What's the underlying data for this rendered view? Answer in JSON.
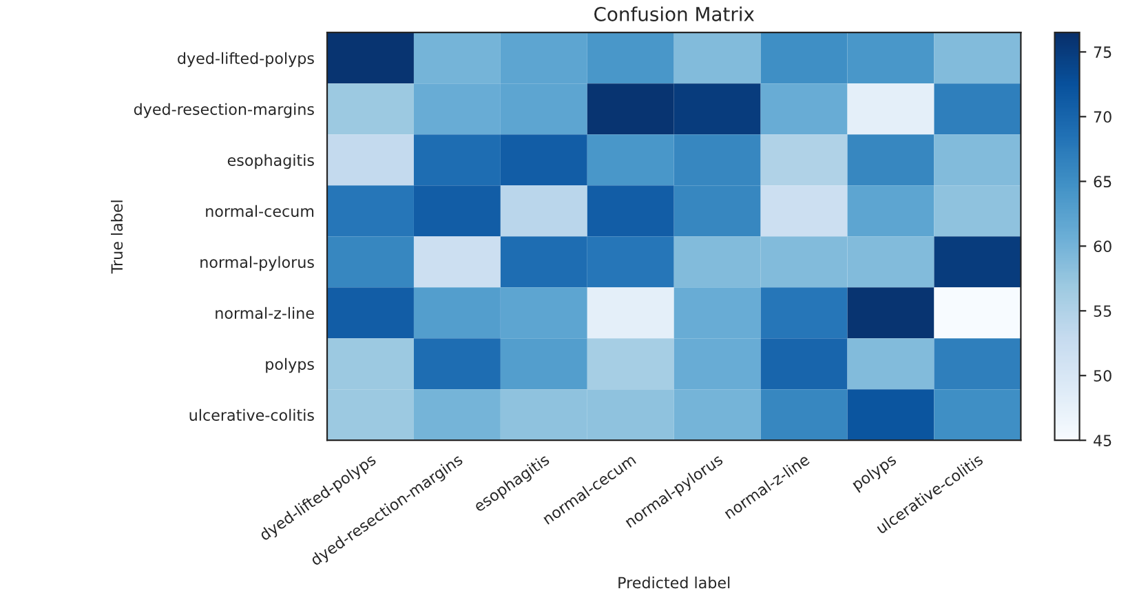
{
  "chart_data": {
    "type": "heatmap",
    "title": "Confusion Matrix",
    "xlabel": "Predicted label",
    "ylabel": "True label",
    "categories": [
      "dyed-lifted-polyps",
      "dyed-resection-margins",
      "esophagitis",
      "normal-cecum",
      "normal-pylorus",
      "normal-z-line",
      "polyps",
      "ulcerative-colitis"
    ],
    "y_categories": [
      "dyed-lifted-polyps",
      "dyed-resection-margins",
      "esophagitis",
      "normal-cecum",
      "normal-pylorus",
      "normal-z-line",
      "polyps",
      "ulcerative-colitis"
    ],
    "cells": [
      [
        76,
        60,
        62,
        64,
        59,
        65,
        64,
        59
      ],
      [
        57,
        61,
        62,
        76,
        75,
        61,
        48,
        67
      ],
      [
        53,
        69,
        71,
        64,
        66,
        55,
        66,
        59
      ],
      [
        68,
        71,
        54,
        71,
        66,
        52,
        62,
        58
      ],
      [
        66,
        52,
        69,
        68,
        59,
        59,
        59,
        75
      ],
      [
        71,
        63,
        62,
        48,
        61,
        68,
        76,
        45
      ],
      [
        57,
        69,
        63,
        56,
        61,
        70,
        59,
        67
      ],
      [
        57,
        60,
        58,
        58,
        60,
        66,
        72,
        65
      ]
    ],
    "clim": [
      45,
      76.5
    ],
    "cticks": [
      45,
      50,
      55,
      60,
      65,
      70,
      75
    ]
  }
}
